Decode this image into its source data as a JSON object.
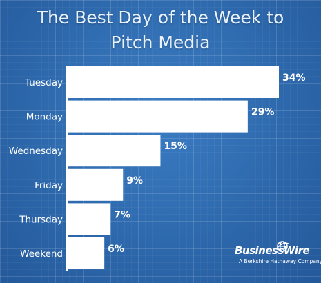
{
  "title": {
    "line1": "The Best Day of the Week to",
    "line2": "Pitch Media"
  },
  "chart_data": {
    "type": "bar",
    "orientation": "horizontal",
    "title": "The Best Day of the Week to Pitch Media",
    "xlabel": "",
    "ylabel": "",
    "grid": false,
    "xlim": [
      0,
      34
    ],
    "categories": [
      "Tuesday",
      "Monday",
      "Wednesday",
      "Friday",
      "Thursday",
      "Weekend"
    ],
    "values": [
      34,
      29,
      15,
      9,
      7,
      6
    ],
    "value_labels": [
      "34%",
      "29%",
      "15%",
      "9%",
      "7%",
      "6%"
    ]
  },
  "logo": {
    "name": "BusinessWire",
    "tagline": "A Berkshire Hathaway Company"
  },
  "colors": {
    "background": "#2e6bb0",
    "bars": "#ffffff",
    "text": "#ffffff"
  }
}
